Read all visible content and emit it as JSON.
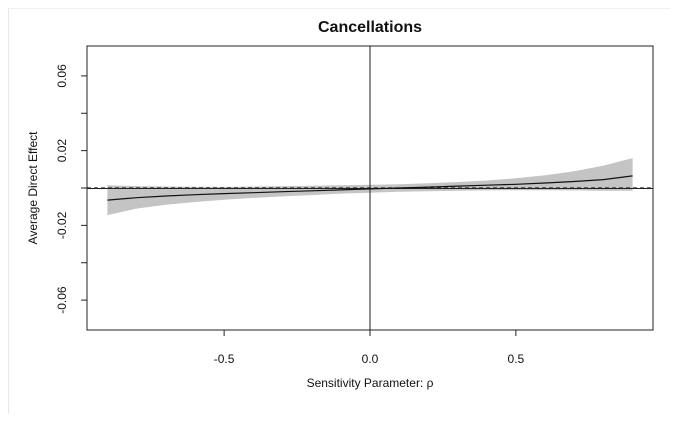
{
  "chart_data": {
    "type": "line",
    "title": "Cancellations",
    "xlabel": "Sensitivity Parameter: ρ",
    "ylabel": "Average Direct Effect",
    "xlim": [
      -0.97,
      0.97
    ],
    "ylim": [
      -0.076,
      0.076
    ],
    "x_ticks": [
      -0.5,
      0.0,
      0.5
    ],
    "x_tick_labels": [
      "-0.5",
      "0.0",
      "0.5"
    ],
    "y_ticks": [
      -0.08,
      -0.06,
      -0.04,
      -0.02,
      0.0,
      0.02,
      0.04,
      0.06
    ],
    "y_tick_labels": [
      "",
      "-0.06",
      "",
      "-0.02",
      "",
      "0.02",
      "",
      "0.06"
    ],
    "grid": false,
    "reference_lines": {
      "horizontal_dashed_y": 0.0,
      "vertical_solid_x": 0.0,
      "horizontal_solid_y": -0.0003
    },
    "series": [
      {
        "role": "estimate",
        "x": [
          -0.9,
          -0.8,
          -0.7,
          -0.6,
          -0.5,
          -0.4,
          -0.3,
          -0.2,
          -0.1,
          0.0,
          0.1,
          0.2,
          0.3,
          0.4,
          0.5,
          0.6,
          0.7,
          0.8,
          0.9
        ],
        "y": [
          -0.0065,
          -0.0052,
          -0.0043,
          -0.0036,
          -0.003,
          -0.0025,
          -0.002,
          -0.0015,
          -0.001,
          -0.0005,
          0.0,
          0.0005,
          0.001,
          0.0015,
          0.002,
          0.0027,
          0.0035,
          0.0045,
          0.0065
        ],
        "lower": [
          -0.0145,
          -0.011,
          -0.009,
          -0.0075,
          -0.0063,
          -0.0053,
          -0.0045,
          -0.0038,
          -0.003,
          -0.0025,
          -0.002,
          -0.0017,
          -0.0015,
          -0.0013,
          -0.0012,
          -0.0012,
          -0.0013,
          -0.0015,
          -0.0015
        ],
        "upper": [
          0.0015,
          0.001,
          0.0008,
          0.0007,
          0.0006,
          0.0008,
          0.001,
          0.0012,
          0.0015,
          0.0017,
          0.002,
          0.0025,
          0.0032,
          0.004,
          0.0052,
          0.0068,
          0.009,
          0.012,
          0.016
        ]
      }
    ],
    "colors": {
      "band": "#c4c4c4",
      "line": "#111111",
      "axis": "#222222"
    }
  }
}
